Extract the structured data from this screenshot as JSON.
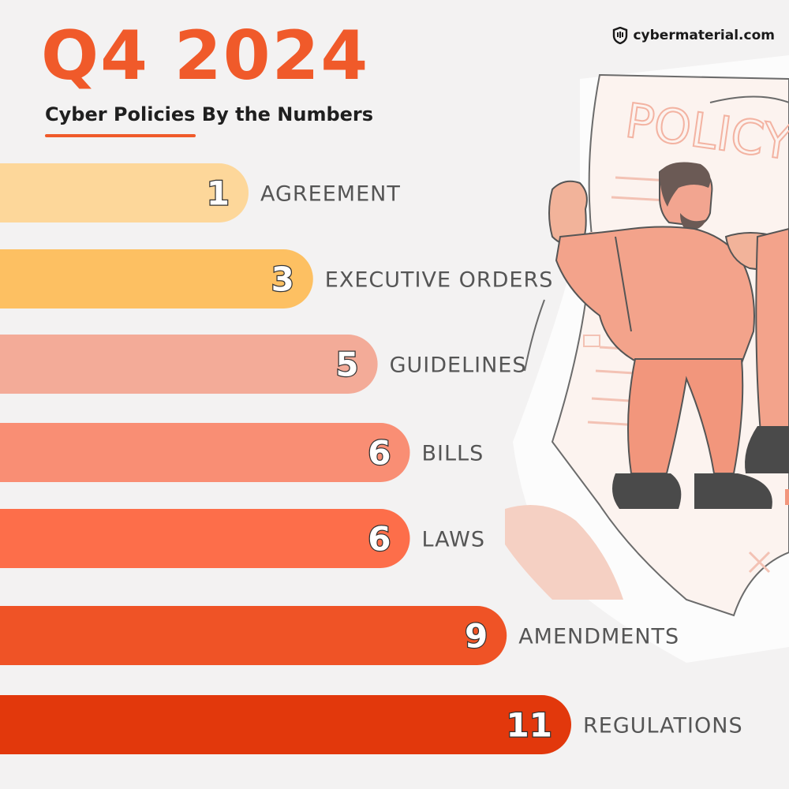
{
  "header": {
    "title": "Q4 2024",
    "subtitle": "Cyber Policies By the Numbers",
    "brand": "cybermaterial.com"
  },
  "illustration": {
    "document_heading": "POLICY"
  },
  "colors": {
    "accent": "#f05a2a",
    "bars": [
      "#fdd79a",
      "#fdc062",
      "#f3ab98",
      "#f98e74",
      "#fd6e4a",
      "#ef5326",
      "#e2380c"
    ]
  },
  "chart_data": {
    "type": "bar",
    "orientation": "horizontal",
    "categories": [
      "AGREEMENT",
      "EXECUTIVE ORDERS",
      "GUIDELINES",
      "BILLS",
      "LAWS",
      "AMENDMENTS",
      "REGULATIONS"
    ],
    "values": [
      1,
      3,
      5,
      6,
      6,
      9,
      11
    ],
    "data_labels": [
      "1",
      "3",
      "5",
      "6",
      "6",
      "9",
      "11"
    ],
    "title": "",
    "xlabel": "",
    "ylabel": "",
    "grid": false,
    "legend": "none"
  }
}
